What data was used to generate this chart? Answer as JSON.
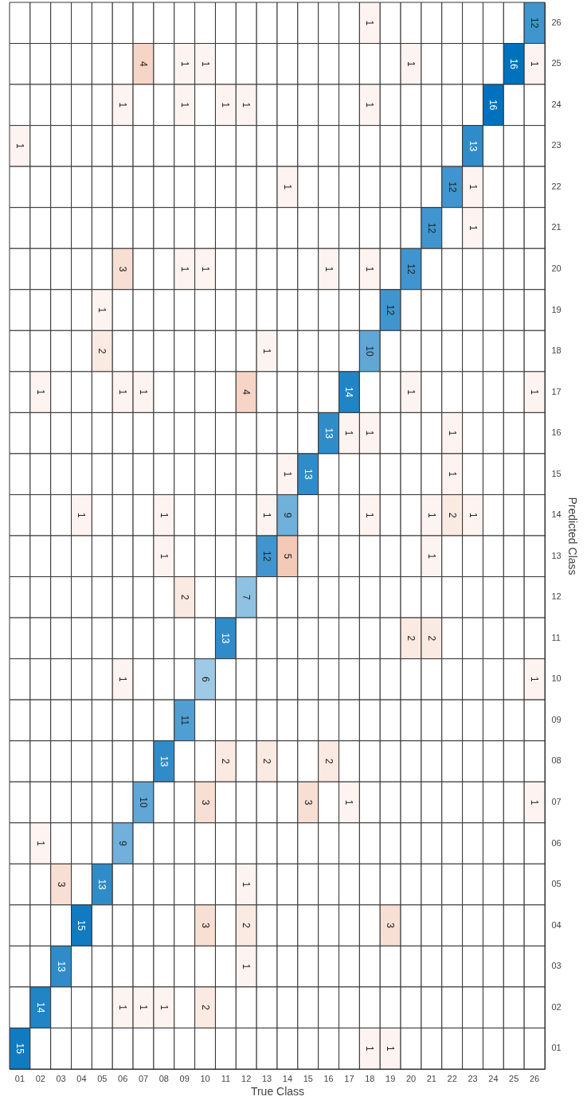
{
  "chart_data": {
    "type": "heatmap",
    "xlabel": "True Class",
    "ylabel": "Predicted Class",
    "data_labels": true,
    "categories": [
      "01",
      "02",
      "03",
      "04",
      "05",
      "06",
      "07",
      "08",
      "09",
      "10",
      "11",
      "12",
      "13",
      "14",
      "15",
      "16",
      "17",
      "18",
      "19",
      "20",
      "21",
      "22",
      "23",
      "24",
      "25",
      "26"
    ],
    "y_categories": [
      "26",
      "25",
      "24",
      "23",
      "22",
      "21",
      "20",
      "19",
      "18",
      "17",
      "16",
      "15",
      "14",
      "13",
      "12",
      "11",
      "10",
      "09",
      "08",
      "07",
      "06",
      "05",
      "04",
      "03",
      "02",
      "01"
    ],
    "cells": [
      [
        null,
        null,
        null,
        null,
        null,
        null,
        null,
        null,
        null,
        null,
        null,
        null,
        null,
        null,
        null,
        null,
        null,
        1,
        null,
        null,
        null,
        null,
        null,
        null,
        null,
        12
      ],
      [
        null,
        null,
        null,
        null,
        null,
        null,
        4,
        null,
        1,
        1,
        null,
        null,
        null,
        null,
        null,
        null,
        null,
        null,
        null,
        1,
        null,
        null,
        null,
        null,
        16,
        1
      ],
      [
        null,
        null,
        null,
        null,
        null,
        1,
        null,
        null,
        1,
        null,
        1,
        1,
        null,
        null,
        null,
        null,
        null,
        1,
        null,
        null,
        null,
        null,
        null,
        16,
        null,
        null
      ],
      [
        1,
        null,
        null,
        null,
        null,
        null,
        null,
        null,
        null,
        null,
        null,
        null,
        null,
        null,
        null,
        null,
        null,
        null,
        null,
        null,
        null,
        null,
        13,
        null,
        null,
        null
      ],
      [
        null,
        null,
        null,
        null,
        null,
        null,
        null,
        null,
        null,
        null,
        null,
        null,
        null,
        1,
        null,
        null,
        null,
        null,
        null,
        null,
        null,
        12,
        1,
        null,
        null,
        null
      ],
      [
        null,
        null,
        null,
        null,
        null,
        null,
        null,
        null,
        null,
        null,
        null,
        null,
        null,
        null,
        null,
        null,
        null,
        null,
        null,
        null,
        12,
        null,
        1,
        null,
        null,
        null
      ],
      [
        null,
        null,
        null,
        null,
        null,
        3,
        null,
        null,
        1,
        1,
        null,
        null,
        null,
        null,
        null,
        1,
        null,
        1,
        null,
        12,
        null,
        null,
        null,
        null,
        null,
        null
      ],
      [
        null,
        null,
        null,
        null,
        1,
        null,
        null,
        null,
        null,
        null,
        null,
        null,
        null,
        null,
        null,
        null,
        null,
        null,
        12,
        null,
        null,
        null,
        null,
        null,
        null,
        null
      ],
      [
        null,
        null,
        null,
        null,
        2,
        null,
        null,
        null,
        null,
        null,
        null,
        null,
        1,
        null,
        null,
        null,
        null,
        10,
        null,
        null,
        null,
        null,
        null,
        null,
        null,
        null
      ],
      [
        null,
        1,
        null,
        null,
        null,
        1,
        1,
        null,
        null,
        null,
        null,
        4,
        null,
        null,
        null,
        null,
        14,
        null,
        null,
        1,
        null,
        null,
        null,
        null,
        null,
        1
      ],
      [
        null,
        null,
        null,
        null,
        null,
        null,
        null,
        null,
        null,
        null,
        null,
        null,
        null,
        null,
        null,
        13,
        1,
        1,
        null,
        null,
        null,
        1,
        null,
        null,
        null,
        null
      ],
      [
        null,
        null,
        null,
        null,
        null,
        null,
        null,
        null,
        null,
        null,
        null,
        null,
        null,
        1,
        13,
        null,
        null,
        null,
        null,
        null,
        null,
        1,
        null,
        null,
        null,
        null
      ],
      [
        null,
        null,
        null,
        1,
        null,
        null,
        null,
        1,
        null,
        null,
        null,
        null,
        1,
        9,
        null,
        null,
        null,
        1,
        null,
        null,
        1,
        2,
        1,
        null,
        null,
        null
      ],
      [
        null,
        null,
        null,
        null,
        null,
        null,
        null,
        1,
        null,
        null,
        null,
        null,
        12,
        5,
        null,
        null,
        null,
        null,
        null,
        null,
        1,
        null,
        null,
        null,
        null,
        null
      ],
      [
        null,
        null,
        null,
        null,
        null,
        null,
        null,
        null,
        2,
        null,
        null,
        7,
        null,
        null,
        null,
        null,
        null,
        null,
        null,
        null,
        null,
        null,
        null,
        null,
        null,
        null
      ],
      [
        null,
        null,
        null,
        null,
        null,
        null,
        null,
        null,
        null,
        null,
        13,
        null,
        null,
        null,
        null,
        null,
        null,
        null,
        null,
        2,
        2,
        null,
        null,
        null,
        null,
        null
      ],
      [
        null,
        null,
        null,
        null,
        null,
        1,
        null,
        null,
        null,
        6,
        null,
        null,
        null,
        null,
        null,
        null,
        null,
        null,
        null,
        null,
        null,
        null,
        null,
        null,
        null,
        1
      ],
      [
        null,
        null,
        null,
        null,
        null,
        null,
        null,
        null,
        11,
        null,
        null,
        null,
        null,
        null,
        null,
        null,
        null,
        null,
        null,
        null,
        null,
        null,
        null,
        null,
        null,
        null
      ],
      [
        null,
        null,
        null,
        null,
        null,
        null,
        null,
        13,
        null,
        null,
        2,
        null,
        2,
        null,
        null,
        2,
        null,
        null,
        null,
        null,
        null,
        null,
        null,
        null,
        null,
        null
      ],
      [
        null,
        null,
        null,
        null,
        null,
        null,
        10,
        null,
        null,
        3,
        null,
        null,
        null,
        null,
        3,
        null,
        1,
        null,
        null,
        null,
        null,
        null,
        null,
        null,
        null,
        1
      ],
      [
        null,
        1,
        null,
        null,
        null,
        9,
        null,
        null,
        null,
        null,
        null,
        null,
        null,
        null,
        null,
        null,
        null,
        null,
        null,
        null,
        null,
        null,
        null,
        null,
        null,
        null
      ],
      [
        null,
        null,
        3,
        null,
        13,
        null,
        null,
        null,
        null,
        null,
        null,
        1,
        null,
        null,
        null,
        null,
        null,
        null,
        null,
        null,
        null,
        null,
        null,
        null,
        null,
        null
      ],
      [
        null,
        null,
        null,
        15,
        null,
        null,
        null,
        null,
        null,
        3,
        null,
        2,
        null,
        null,
        null,
        null,
        null,
        null,
        3,
        null,
        null,
        null,
        null,
        null,
        null,
        null
      ],
      [
        null,
        null,
        13,
        null,
        null,
        null,
        null,
        null,
        null,
        null,
        null,
        1,
        null,
        null,
        null,
        null,
        null,
        null,
        null,
        null,
        null,
        null,
        null,
        null,
        null,
        null
      ],
      [
        null,
        14,
        null,
        null,
        null,
        1,
        1,
        1,
        null,
        2,
        null,
        null,
        null,
        null,
        null,
        null,
        null,
        null,
        null,
        null,
        null,
        null,
        null,
        null,
        null,
        null
      ],
      [
        15,
        null,
        null,
        null,
        null,
        null,
        null,
        null,
        null,
        null,
        null,
        null,
        null,
        null,
        null,
        null,
        null,
        1,
        1,
        null,
        null,
        null,
        null,
        null,
        null,
        null
      ]
    ]
  }
}
